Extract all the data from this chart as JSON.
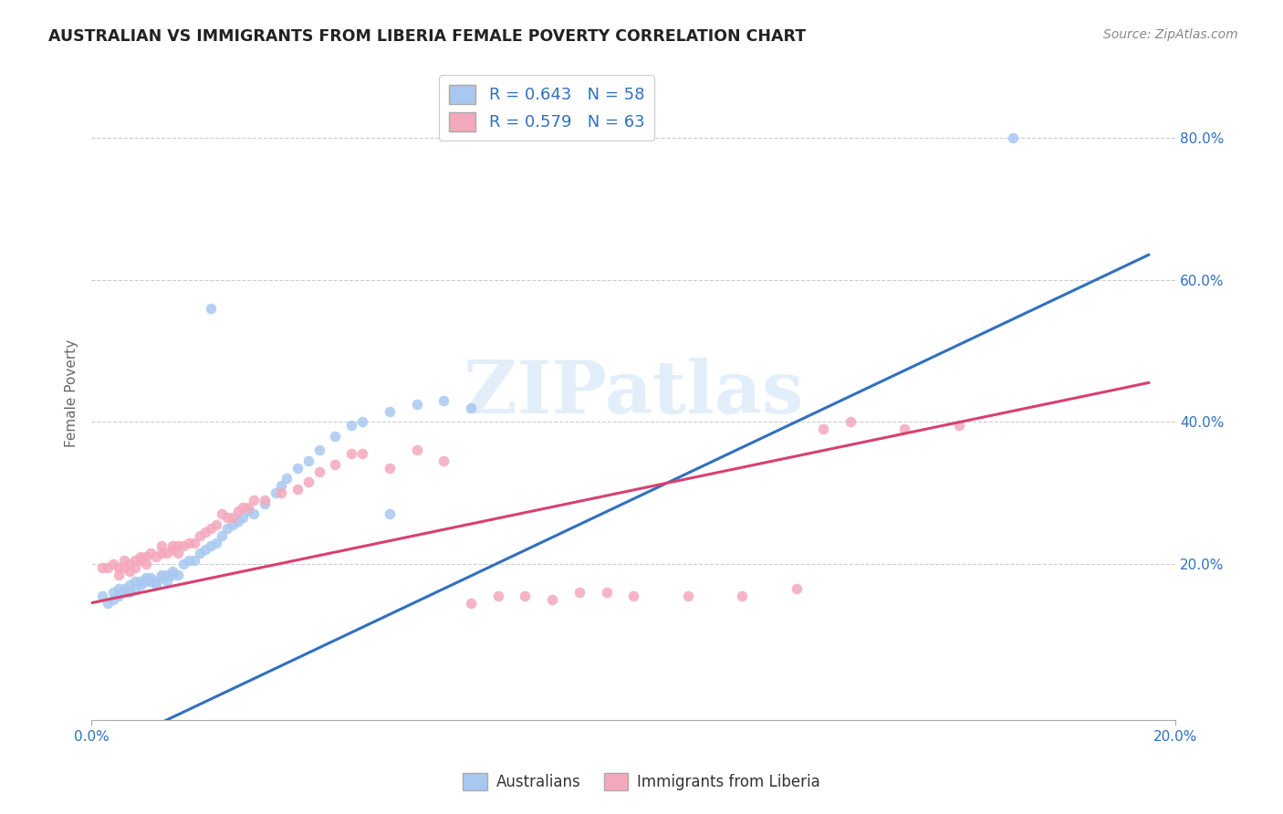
{
  "title": "AUSTRALIAN VS IMMIGRANTS FROM LIBERIA FEMALE POVERTY CORRELATION CHART",
  "source": "Source: ZipAtlas.com",
  "ylabel": "Female Poverty",
  "xlim": [
    0.0,
    0.2
  ],
  "ylim": [
    -0.02,
    0.9
  ],
  "xtick_labels": [
    "0.0%",
    "20.0%"
  ],
  "ytick_labels": [
    "20.0%",
    "40.0%",
    "60.0%",
    "80.0%"
  ],
  "ytick_positions": [
    0.2,
    0.4,
    0.6,
    0.8
  ],
  "xtick_positions": [
    0.0,
    0.2
  ],
  "blue_color": "#A8C8F0",
  "pink_color": "#F4A8BC",
  "blue_line_color": "#3070C0",
  "pink_line_color": "#D84070",
  "watermark_text": "ZIPatlas",
  "legend_label1": "Australians",
  "legend_label2": "Immigrants from Liberia",
  "blue_line_x": [
    0.0,
    0.195
  ],
  "blue_line_y": [
    -0.07,
    0.635
  ],
  "pink_line_x": [
    0.0,
    0.195
  ],
  "pink_line_y": [
    0.145,
    0.455
  ],
  "blue_scatter_x": [
    0.002,
    0.003,
    0.004,
    0.004,
    0.005,
    0.005,
    0.006,
    0.006,
    0.007,
    0.007,
    0.008,
    0.008,
    0.009,
    0.009,
    0.01,
    0.01,
    0.011,
    0.011,
    0.012,
    0.012,
    0.013,
    0.013,
    0.014,
    0.014,
    0.015,
    0.015,
    0.016,
    0.017,
    0.018,
    0.019,
    0.02,
    0.021,
    0.022,
    0.023,
    0.024,
    0.025,
    0.026,
    0.027,
    0.028,
    0.029,
    0.03,
    0.032,
    0.034,
    0.035,
    0.036,
    0.038,
    0.04,
    0.042,
    0.045,
    0.048,
    0.05,
    0.055,
    0.06,
    0.065,
    0.07,
    0.022,
    0.055,
    0.17
  ],
  "blue_scatter_y": [
    0.155,
    0.145,
    0.15,
    0.16,
    0.155,
    0.165,
    0.16,
    0.165,
    0.16,
    0.17,
    0.165,
    0.175,
    0.17,
    0.175,
    0.175,
    0.18,
    0.175,
    0.18,
    0.17,
    0.175,
    0.18,
    0.185,
    0.175,
    0.185,
    0.185,
    0.19,
    0.185,
    0.2,
    0.205,
    0.205,
    0.215,
    0.22,
    0.225,
    0.23,
    0.24,
    0.25,
    0.255,
    0.26,
    0.265,
    0.275,
    0.27,
    0.285,
    0.3,
    0.31,
    0.32,
    0.335,
    0.345,
    0.36,
    0.38,
    0.395,
    0.4,
    0.415,
    0.425,
    0.43,
    0.42,
    0.56,
    0.27,
    0.8
  ],
  "pink_scatter_x": [
    0.002,
    0.003,
    0.004,
    0.005,
    0.005,
    0.006,
    0.006,
    0.007,
    0.007,
    0.008,
    0.008,
    0.009,
    0.009,
    0.01,
    0.01,
    0.011,
    0.012,
    0.013,
    0.013,
    0.014,
    0.015,
    0.015,
    0.016,
    0.016,
    0.017,
    0.018,
    0.019,
    0.02,
    0.021,
    0.022,
    0.023,
    0.024,
    0.025,
    0.026,
    0.027,
    0.028,
    0.029,
    0.03,
    0.032,
    0.035,
    0.038,
    0.04,
    0.042,
    0.045,
    0.048,
    0.05,
    0.055,
    0.06,
    0.065,
    0.07,
    0.075,
    0.08,
    0.085,
    0.09,
    0.095,
    0.1,
    0.11,
    0.12,
    0.13,
    0.135,
    0.14,
    0.15,
    0.16
  ],
  "pink_scatter_y": [
    0.195,
    0.195,
    0.2,
    0.185,
    0.195,
    0.195,
    0.205,
    0.19,
    0.2,
    0.205,
    0.195,
    0.205,
    0.21,
    0.2,
    0.21,
    0.215,
    0.21,
    0.215,
    0.225,
    0.215,
    0.22,
    0.225,
    0.215,
    0.225,
    0.225,
    0.23,
    0.23,
    0.24,
    0.245,
    0.25,
    0.255,
    0.27,
    0.265,
    0.265,
    0.275,
    0.28,
    0.28,
    0.29,
    0.29,
    0.3,
    0.305,
    0.315,
    0.33,
    0.34,
    0.355,
    0.355,
    0.335,
    0.36,
    0.345,
    0.145,
    0.155,
    0.155,
    0.15,
    0.16,
    0.16,
    0.155,
    0.155,
    0.155,
    0.165,
    0.39,
    0.4,
    0.39,
    0.395
  ]
}
